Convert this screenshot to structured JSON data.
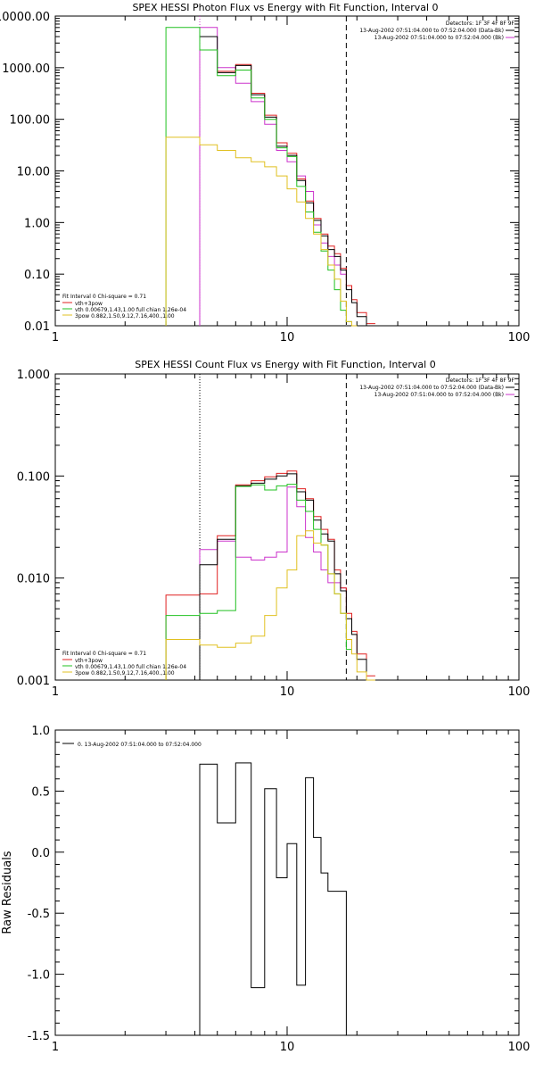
{
  "chart_data": [
    {
      "type": "line",
      "title": "SPEX HESSI Photon Flux vs Energy with Fit Function, Interval 0",
      "xlabel": "",
      "ylabel": "",
      "xscale": "log",
      "yscale": "log",
      "xlim": [
        1,
        100
      ],
      "ylim": [
        0.01,
        10000
      ],
      "x_ticks": [
        "1",
        "10",
        "100"
      ],
      "y_ticks": [
        "0.01",
        "0.10",
        "1.00",
        "10.00",
        "100.00",
        "1000.00",
        "10000.00"
      ],
      "info_lines": [
        "Detectors: 1F 3F 4F 8F 9F",
        "13-Aug-2002 07:51:04.000 to 07:52:04.000 (Data-Bk)",
        "13-Aug-2002 07:51:04.000 to 07:52:04.000 (Bk)"
      ],
      "legend_title": "Fit Interval 0   Chi-square = 0.71",
      "legend": [
        {
          "label": "vth+3pow",
          "color": "#e02020"
        },
        {
          "label": "vth 0.00679,1.43,1.00  full chian 1.26e-04",
          "color": "#20c020"
        },
        {
          "label": "3pow 0.882,1.50,9.12,7.16,400.,1.00",
          "color": "#e0c020"
        }
      ],
      "vlines": [
        {
          "x": 4.2,
          "style": "dotted",
          "color": "#cc33cc"
        },
        {
          "x": 18.0,
          "style": "dashed",
          "color": "#000000"
        }
      ],
      "series": [
        {
          "color": "#cc33cc",
          "start": 4.2,
          "bins": [
            [
              4.2,
              5,
              6000
            ],
            [
              5,
              6,
              1000
            ],
            [
              6,
              7,
              500
            ],
            [
              7,
              8,
              220
            ],
            [
              8,
              9,
              80
            ],
            [
              9,
              10,
              25
            ],
            [
              10,
              11,
              15
            ],
            [
              11,
              12,
              8
            ],
            [
              12,
              13,
              4
            ],
            [
              13,
              14,
              0.9
            ],
            [
              14,
              15,
              0.4
            ],
            [
              15,
              16,
              0.22
            ],
            [
              16,
              17,
              0.15
            ],
            [
              17,
              18,
              0.1
            ]
          ]
        },
        {
          "color": "#e02020",
          "bins": [
            [
              5,
              6,
              850
            ],
            [
              6,
              7,
              1150
            ],
            [
              7,
              8,
              320
            ],
            [
              8,
              9,
              120
            ],
            [
              9,
              10,
              35
            ],
            [
              10,
              11,
              22
            ],
            [
              11,
              12,
              7
            ],
            [
              12,
              13,
              2.6
            ],
            [
              13,
              14,
              1.2
            ],
            [
              14,
              15,
              0.6
            ],
            [
              15,
              16,
              0.35
            ],
            [
              16,
              17,
              0.25
            ],
            [
              17,
              18,
              0.13
            ],
            [
              18,
              19,
              0.06
            ],
            [
              19,
              20,
              0.032
            ],
            [
              20,
              22,
              0.018
            ],
            [
              22,
              24,
              0.011
            ]
          ]
        },
        {
          "color": "#000000",
          "bins": [
            [
              4.2,
              5,
              4000
            ],
            [
              5,
              6,
              800
            ],
            [
              6,
              7,
              1100
            ],
            [
              7,
              8,
              300
            ],
            [
              8,
              9,
              110
            ],
            [
              9,
              10,
              30
            ],
            [
              10,
              11,
              20
            ],
            [
              11,
              12,
              6.5
            ],
            [
              12,
              13,
              2.4
            ],
            [
              13,
              14,
              1.1
            ],
            [
              14,
              15,
              0.55
            ],
            [
              15,
              16,
              0.3
            ],
            [
              16,
              17,
              0.22
            ],
            [
              17,
              18,
              0.12
            ],
            [
              18,
              19,
              0.05
            ],
            [
              19,
              20,
              0.028
            ],
            [
              20,
              22,
              0.015
            ],
            [
              22,
              24,
              0.01
            ]
          ]
        },
        {
          "color": "#20c020",
          "start": 3,
          "bins": [
            [
              3,
              4.2,
              6000
            ],
            [
              4.2,
              5,
              2200
            ],
            [
              5,
              6,
              700
            ],
            [
              6,
              7,
              900
            ],
            [
              7,
              8,
              260
            ],
            [
              8,
              9,
              100
            ],
            [
              9,
              10,
              28
            ],
            [
              10,
              11,
              19
            ],
            [
              11,
              12,
              5
            ],
            [
              12,
              13,
              1.6
            ],
            [
              13,
              14,
              0.65
            ],
            [
              14,
              15,
              0.28
            ],
            [
              15,
              16,
              0.12
            ],
            [
              16,
              17,
              0.05
            ],
            [
              17,
              18,
              0.02
            ],
            [
              18,
              19,
              0.012
            ],
            [
              19,
              20,
              0.01
            ]
          ]
        },
        {
          "color": "#e0c020",
          "start": 3,
          "bins": [
            [
              3,
              4.2,
              45
            ],
            [
              4.2,
              5,
              32
            ],
            [
              5,
              6,
              25
            ],
            [
              6,
              7,
              18
            ],
            [
              7,
              8,
              15
            ],
            [
              8,
              9,
              12
            ],
            [
              9,
              10,
              8
            ],
            [
              10,
              11,
              4.5
            ],
            [
              11,
              12,
              2.5
            ],
            [
              12,
              13,
              1.2
            ],
            [
              13,
              14,
              0.6
            ],
            [
              14,
              15,
              0.3
            ],
            [
              15,
              16,
              0.15
            ],
            [
              16,
              17,
              0.08
            ],
            [
              17,
              18,
              0.03
            ],
            [
              18,
              19,
              0.012
            ],
            [
              19,
              20,
              0.01
            ]
          ]
        }
      ]
    },
    {
      "type": "line",
      "title": "SPEX HESSI Count Flux vs Energy with Fit Function, Interval 0",
      "xlabel": "",
      "ylabel": "",
      "xscale": "log",
      "yscale": "log",
      "xlim": [
        1,
        100
      ],
      "ylim": [
        0.001,
        1
      ],
      "x_ticks": [
        "1",
        "10",
        "100"
      ],
      "y_ticks": [
        "0.001",
        "0.010",
        "0.100",
        "1.000"
      ],
      "info_lines": [
        "Detectors: 1F 3F 4F 8F 9F",
        "13-Aug-2002 07:51:04.000 to 07:52:04.000 (Data-Bk)",
        "13-Aug-2002 07:51:04.000 to 07:52:04.000 (Bk)"
      ],
      "legend_title": "Fit Interval 0   Chi-square = 0.71",
      "legend": [
        {
          "label": "vth+3pow",
          "color": "#e02020"
        },
        {
          "label": "vth 0.00679,1.43,1.00  full chian 1.26e-04",
          "color": "#20c020"
        },
        {
          "label": "3pow 0.882,1.50,9.12,7.16,400.,1.00",
          "color": "#e0c020"
        }
      ],
      "vlines": [
        {
          "x": 4.2,
          "style": "dotted",
          "color": "#000000"
        },
        {
          "x": 18.0,
          "style": "dashed",
          "color": "#000000"
        }
      ],
      "series": [
        {
          "color": "#cc33cc",
          "start": 4.2,
          "bins": [
            [
              4.2,
              5,
              0.019
            ],
            [
              5,
              6,
              0.023
            ],
            [
              6,
              7,
              0.016
            ],
            [
              7,
              8,
              0.015
            ],
            [
              8,
              9,
              0.016
            ],
            [
              9,
              10,
              0.018
            ],
            [
              10,
              11,
              0.078
            ],
            [
              11,
              12,
              0.05
            ],
            [
              12,
              13,
              0.025
            ],
            [
              13,
              14,
              0.018
            ],
            [
              14,
              15,
              0.012
            ],
            [
              15,
              16,
              0.009
            ],
            [
              16,
              17,
              0.009
            ],
            [
              17,
              18,
              0.008
            ]
          ]
        },
        {
          "color": "#e02020",
          "start": 3,
          "bins": [
            [
              3,
              4.2,
              0.0068
            ],
            [
              4.2,
              5,
              0.007
            ],
            [
              5,
              6,
              0.026
            ],
            [
              6,
              7,
              0.082
            ],
            [
              7,
              8,
              0.09
            ],
            [
              8,
              9,
              0.098
            ],
            [
              9,
              10,
              0.106
            ],
            [
              10,
              11,
              0.112
            ],
            [
              11,
              12,
              0.075
            ],
            [
              12,
              13,
              0.06
            ],
            [
              13,
              14,
              0.04
            ],
            [
              14,
              15,
              0.03
            ],
            [
              15,
              16,
              0.024
            ],
            [
              16,
              17,
              0.012
            ],
            [
              17,
              18,
              0.008
            ],
            [
              18,
              19,
              0.0045
            ],
            [
              19,
              20,
              0.003
            ],
            [
              20,
              22,
              0.0018
            ],
            [
              22,
              24,
              0.0011
            ]
          ]
        },
        {
          "color": "#000000",
          "start": 4.2,
          "bins": [
            [
              4.2,
              5,
              0.0135
            ],
            [
              5,
              6,
              0.024
            ],
            [
              6,
              7,
              0.08
            ],
            [
              7,
              8,
              0.085
            ],
            [
              8,
              9,
              0.093
            ],
            [
              9,
              10,
              0.1
            ],
            [
              10,
              11,
              0.105
            ],
            [
              11,
              12,
              0.07
            ],
            [
              12,
              13,
              0.058
            ],
            [
              13,
              14,
              0.037
            ],
            [
              14,
              15,
              0.027
            ],
            [
              15,
              16,
              0.023
            ],
            [
              16,
              17,
              0.011
            ],
            [
              17,
              18,
              0.0075
            ],
            [
              18,
              19,
              0.004
            ],
            [
              19,
              20,
              0.0028
            ],
            [
              20,
              22,
              0.0016
            ],
            [
              22,
              24,
              0.001
            ]
          ]
        },
        {
          "color": "#20c020",
          "start": 3,
          "bins": [
            [
              3,
              4.2,
              0.0043
            ],
            [
              4.2,
              5,
              0.0045
            ],
            [
              5,
              6,
              0.0048
            ],
            [
              6,
              7,
              0.079
            ],
            [
              7,
              8,
              0.082
            ],
            [
              8,
              9,
              0.073
            ],
            [
              9,
              10,
              0.08
            ],
            [
              10,
              11,
              0.083
            ],
            [
              11,
              12,
              0.058
            ],
            [
              12,
              13,
              0.045
            ],
            [
              13,
              14,
              0.03
            ],
            [
              14,
              15,
              0.021
            ],
            [
              15,
              16,
              0.011
            ],
            [
              16,
              17,
              0.007
            ],
            [
              17,
              18,
              0.0045
            ],
            [
              18,
              19,
              0.002
            ]
          ]
        },
        {
          "color": "#e0c020",
          "start": 3,
          "bins": [
            [
              3,
              4.2,
              0.0025
            ],
            [
              4.2,
              5,
              0.0022
            ],
            [
              5,
              6,
              0.0021
            ],
            [
              6,
              7,
              0.0023
            ],
            [
              7,
              8,
              0.0027
            ],
            [
              8,
              9,
              0.0043
            ],
            [
              9,
              10,
              0.008
            ],
            [
              10,
              11,
              0.012
            ],
            [
              11,
              12,
              0.026
            ],
            [
              12,
              13,
              0.029
            ],
            [
              13,
              14,
              0.022
            ],
            [
              14,
              15,
              0.021
            ],
            [
              15,
              16,
              0.011
            ],
            [
              16,
              17,
              0.007
            ],
            [
              17,
              18,
              0.0045
            ],
            [
              18,
              19,
              0.0025
            ],
            [
              19,
              20,
              0.0018
            ],
            [
              20,
              22,
              0.0012
            ],
            [
              22,
              24,
              0.001
            ]
          ]
        }
      ]
    },
    {
      "type": "line",
      "title": "",
      "xlabel": "",
      "ylabel": "Raw Residuals",
      "xscale": "log",
      "yscale": "linear",
      "xlim": [
        1,
        100
      ],
      "ylim": [
        -1.5,
        1.0
      ],
      "x_ticks": [
        "1",
        "10",
        "100"
      ],
      "y_ticks": [
        "-1.5",
        "-1.0",
        "-0.5",
        "0.0",
        "0.5",
        "1.0"
      ],
      "legend_title": "",
      "legend": [
        {
          "label": "0. 13-Aug-2002 07:51:04.000 to 07:52:04.000",
          "color": "#000000"
        }
      ],
      "series": [
        {
          "color": "#000000",
          "start": 4.2,
          "end": -1.5,
          "end_x": 18,
          "bins": [
            [
              4.2,
              5,
              0.72
            ],
            [
              5,
              6,
              0.24
            ],
            [
              6,
              7,
              0.73
            ],
            [
              7,
              8,
              -1.11
            ],
            [
              8,
              9,
              0.52
            ],
            [
              9,
              10,
              -0.21
            ],
            [
              10,
              11,
              0.07
            ],
            [
              11,
              12,
              -1.09
            ],
            [
              12,
              13,
              0.61
            ],
            [
              13,
              14,
              0.12
            ],
            [
              14,
              15,
              -0.17
            ],
            [
              15,
              16,
              -0.32
            ],
            [
              16,
              18,
              -0.32
            ]
          ]
        }
      ]
    }
  ]
}
